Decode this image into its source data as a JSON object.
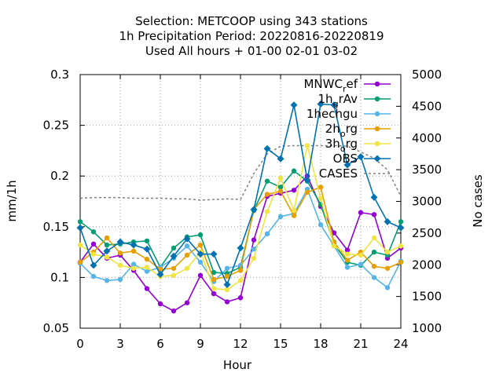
{
  "chart_data": {
    "type": "line",
    "title_lines": [
      "Selection: METCOOP using   343 stations",
      "1h Precipitation   Period: 20220816-20220819",
      "Used  All hours  + 01-00 02-01 03-02"
    ],
    "xlabel": "Hour",
    "ylabel": "mm/1h",
    "y2label": "No cases",
    "xlim": [
      0,
      24
    ],
    "ylim": [
      0.05,
      0.3
    ],
    "y2lim": [
      1000,
      5000
    ],
    "xticks": [
      0,
      3,
      6,
      9,
      12,
      15,
      18,
      21,
      24
    ],
    "yticks": [
      0.05,
      0.1,
      0.15,
      0.2,
      0.25,
      0.3
    ],
    "y2ticks": [
      1000,
      1500,
      2000,
      2500,
      3000,
      3500,
      4000,
      4500,
      5000
    ],
    "grid": true,
    "legend_position": "top-right",
    "x": [
      0,
      1,
      2,
      3,
      4,
      5,
      6,
      7,
      8,
      9,
      10,
      11,
      12,
      13,
      14,
      15,
      16,
      17,
      18,
      19,
      20,
      21,
      22,
      23,
      24
    ],
    "series": [
      {
        "name": "MNWC_ref",
        "legend_main": "MNWC",
        "legend_sub": "r",
        "legend_tail": "ef",
        "color": "#9400d3",
        "marker": "circle",
        "values": [
          0.115,
          0.133,
          0.119,
          0.122,
          0.107,
          0.089,
          0.074,
          0.067,
          0.075,
          0.102,
          0.084,
          0.076,
          0.08,
          0.137,
          0.18,
          0.183,
          0.186,
          0.2,
          0.17,
          0.144,
          0.127,
          0.164,
          0.162,
          0.119,
          0.129
        ]
      },
      {
        "name": "1h_grAv",
        "legend_main": "1h",
        "legend_sub": "g",
        "legend_tail": "rAv",
        "color": "#009e73",
        "marker": "circle",
        "values": [
          0.155,
          0.145,
          0.132,
          0.133,
          0.135,
          0.136,
          0.11,
          0.129,
          0.14,
          0.142,
          0.105,
          0.104,
          0.11,
          0.166,
          0.195,
          0.189,
          0.205,
          0.195,
          0.172,
          0.133,
          0.115,
          0.112,
          0.125,
          0.122,
          0.155
        ]
      },
      {
        "name": "1h_echgu",
        "legend_main": "1h",
        "legend_sub": "",
        "legend_tail": "echgu",
        "color": "#56b4e9",
        "marker": "circle",
        "values": [
          0.114,
          0.101,
          0.097,
          0.098,
          0.113,
          0.106,
          0.11,
          0.119,
          0.131,
          0.115,
          0.096,
          0.109,
          0.112,
          0.128,
          0.143,
          0.16,
          0.163,
          0.187,
          0.152,
          0.131,
          0.11,
          0.113,
          0.1,
          0.09,
          0.116
        ]
      },
      {
        "name": "2h_org",
        "legend_main": "2h",
        "legend_sub": "o",
        "legend_tail": "rg",
        "color": "#e69f00",
        "marker": "circle",
        "values": [
          0.115,
          0.125,
          0.139,
          0.124,
          0.126,
          0.118,
          0.108,
          0.109,
          0.122,
          0.132,
          0.098,
          0.101,
          0.107,
          0.167,
          0.182,
          0.185,
          0.161,
          0.184,
          0.189,
          0.135,
          0.117,
          0.125,
          0.111,
          0.109,
          0.115
        ]
      },
      {
        "name": "3h_org",
        "legend_main": "3h",
        "legend_sub": "o",
        "legend_tail": "rg",
        "color": "#f0e442",
        "marker": "circle",
        "values": [
          0.132,
          0.123,
          0.12,
          0.112,
          0.109,
          0.11,
          0.101,
          0.102,
          0.109,
          0.125,
          0.089,
          0.088,
          0.097,
          0.119,
          0.165,
          0.198,
          0.166,
          0.23,
          0.178,
          0.131,
          0.123,
          0.122,
          0.139,
          0.125,
          0.131
        ]
      },
      {
        "name": "OBS",
        "legend_main": "OBS",
        "legend_sub": "",
        "legend_tail": "",
        "color": "#0072b2",
        "marker": "diamond",
        "values": [
          0.149,
          0.112,
          0.126,
          0.135,
          0.132,
          0.128,
          0.103,
          0.121,
          0.138,
          0.123,
          0.123,
          0.093,
          0.129,
          0.167,
          0.227,
          0.217,
          0.27,
          0.196,
          0.271,
          0.27,
          0.211,
          0.219,
          0.179,
          0.155,
          0.149
        ]
      }
    ],
    "cases": {
      "name": "CASES",
      "color": "#808080",
      "axis": "y2",
      "values": [
        3050,
        3060,
        3060,
        3060,
        3050,
        3050,
        3050,
        3040,
        3040,
        3020,
        3030,
        3040,
        3030,
        3440,
        3750,
        3870,
        3880,
        3880,
        3880,
        3880,
        3870,
        3780,
        3680,
        3500,
        3080
      ]
    }
  }
}
